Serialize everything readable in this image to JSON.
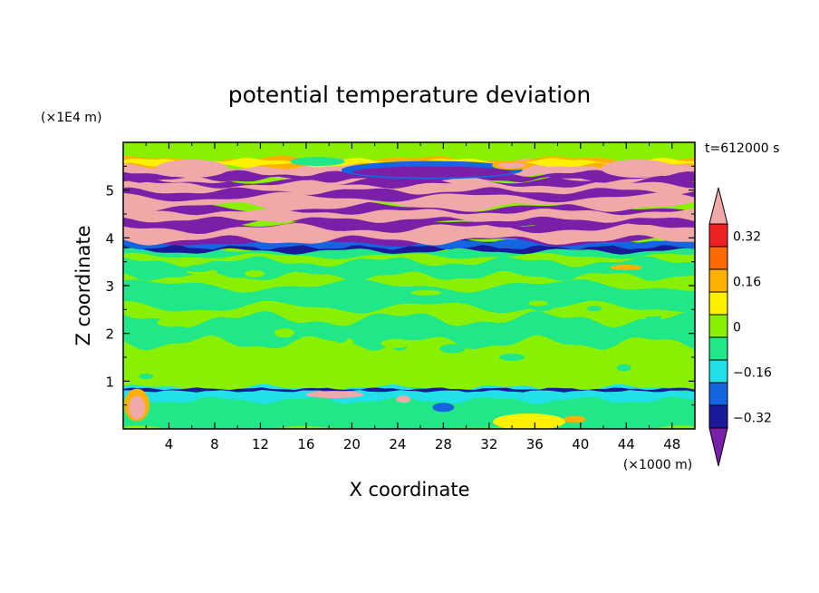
{
  "chart_data": {
    "type": "heatmap",
    "title": "potential temperature deviation",
    "xlabel": "X coordinate",
    "ylabel": "Z coordinate",
    "x_unit": "(×1000 m)",
    "y_unit": "(×1E4 m)",
    "time_label": "t=612000 s",
    "xlim": [
      0,
      50
    ],
    "ylim": [
      0,
      6
    ],
    "x_ticks": [
      "4",
      "8",
      "12",
      "16",
      "20",
      "24",
      "28",
      "32",
      "36",
      "40",
      "44",
      "48"
    ],
    "y_ticks": [
      "1",
      "2",
      "3",
      "4",
      "5"
    ],
    "colorbar": {
      "labels": [
        "0.32",
        "0.16",
        "0",
        "-0.16",
        "-0.32"
      ],
      "label_values": [
        0.32,
        0.16,
        0,
        -0.16,
        -0.32
      ],
      "colors": [
        "#7a1fa8",
        "#1a1a99",
        "#1565e0",
        "#22e0e8",
        "#20e888",
        "#88f000",
        "#fff000",
        "#ffb000",
        "#ff6a00",
        "#ee2222",
        "#f0a8a8"
      ],
      "step": 0.08
    },
    "palette": {
      "purple": "#7a1fa8",
      "navy": "#1a1a99",
      "blue": "#1565e0",
      "cyan": "#22e0e8",
      "green": "#20e888",
      "lime": "#88f000",
      "yellow": "#fff000",
      "orange": "#ffb000",
      "darkorange": "#ff6a00",
      "red": "#ee2222",
      "pink": "#f0a8a8"
    }
  }
}
